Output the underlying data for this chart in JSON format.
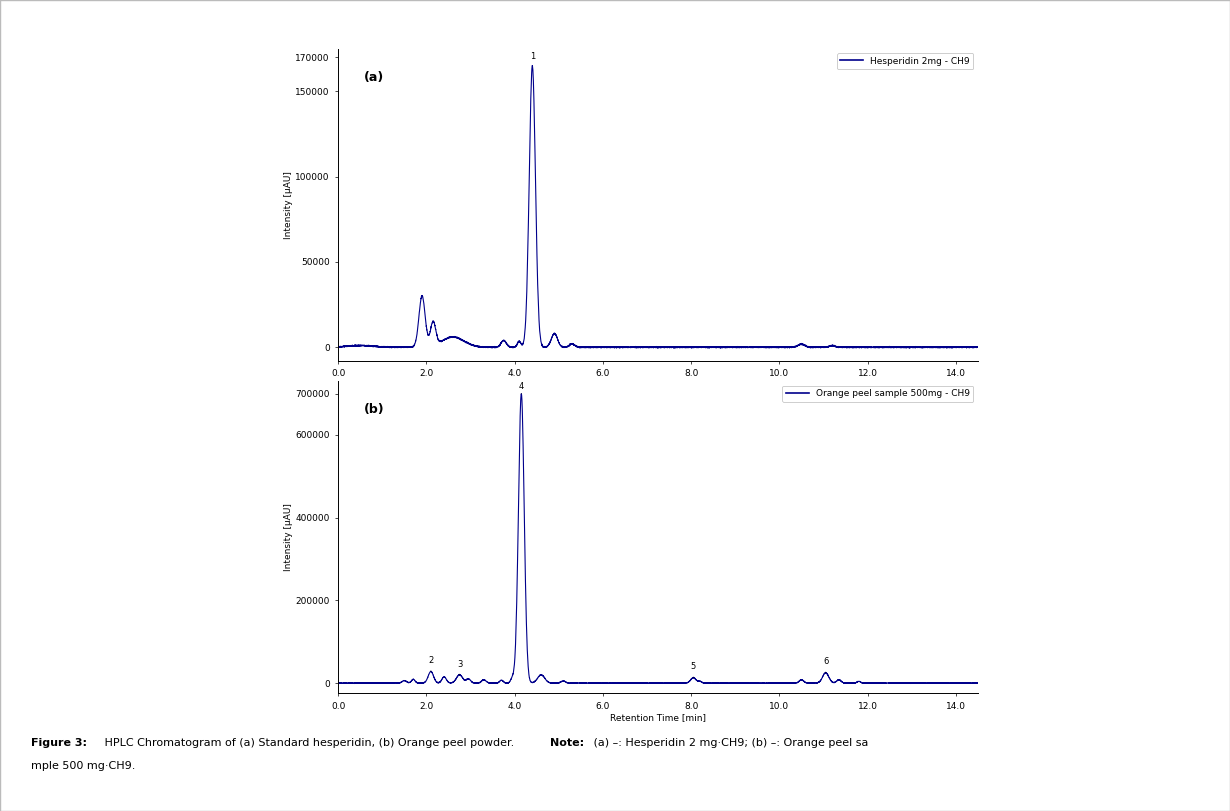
{
  "fig_width": 12.3,
  "fig_height": 8.11,
  "fig_dpi": 100,
  "bg_color": "#ffffff",
  "border_color": "#bbbbbb",
  "line_color": "#00008B",
  "line_width": 0.8,
  "plot_a": {
    "label": "(a)",
    "legend_label": "Hesperidin 2mg - CH9",
    "ylabel": "Intensity [μAU]",
    "xlabel": "Retention Time [min]",
    "xlim": [
      0.0,
      14.5
    ],
    "ylim": [
      -8000,
      175000
    ],
    "yticks": [
      0,
      50000,
      100000,
      150000,
      170000
    ],
    "ytick_labels": [
      "0",
      "50000",
      "100000",
      "150000",
      "170000"
    ],
    "xticks": [
      0.0,
      2.0,
      4.0,
      6.0,
      8.0,
      10.0,
      12.0,
      14.0
    ],
    "xtick_labels": [
      "0.0",
      "2.0",
      "4.0",
      "6.0",
      "8.0",
      "10.0",
      "12.0",
      "14.0"
    ]
  },
  "plot_b": {
    "label": "(b)",
    "legend_label": "Orange peel sample 500mg - CH9",
    "ylabel": "Intensity [μAU]",
    "xlabel": "Retention Time [min]",
    "xlim": [
      0.0,
      14.5
    ],
    "ylim": [
      -25000,
      730000
    ],
    "yticks": [
      0,
      200000,
      400000,
      600000,
      700000
    ],
    "ytick_labels": [
      "0",
      "200000",
      "400000",
      "600000",
      "700000"
    ],
    "xticks": [
      0.0,
      2.0,
      4.0,
      6.0,
      8.0,
      10.0,
      12.0,
      14.0
    ],
    "xtick_labels": [
      "0.0",
      "2.0",
      "4.0",
      "6.0",
      "8.0",
      "10.0",
      "12.0",
      "14.0"
    ]
  },
  "caption_fig_bold": "Figure 3:",
  "caption_fig_normal": " HPLC Chromatogram of (a) Standard hesperidin, (b) Orange peel powder. ",
  "caption_note_bold": "Note:",
  "caption_note_normal": " (a) –: Hesperidin 2 mg·CH9; (b) –: Orange peel sample 500 mg·CH9."
}
